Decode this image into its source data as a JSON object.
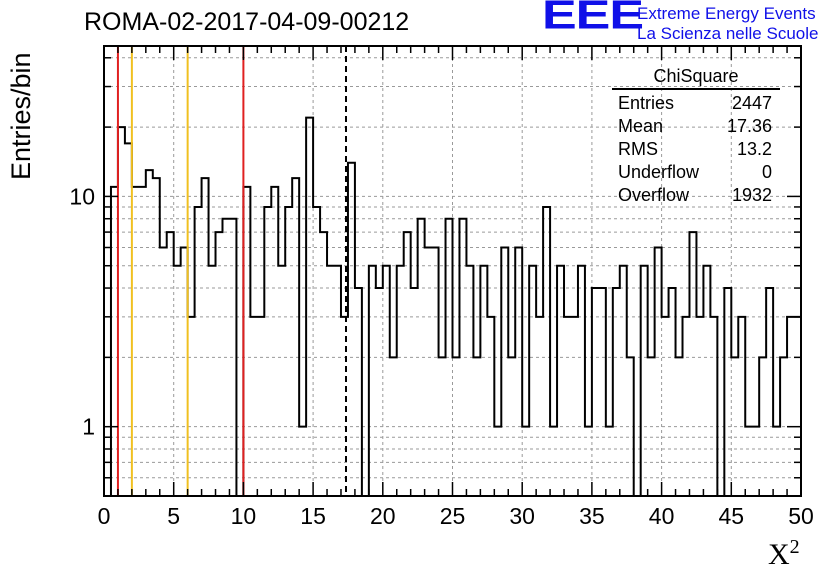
{
  "header": {
    "run_title": "ROMA-02-2017-04-09-00212",
    "logo_text": "EEE",
    "logo_line1": "Extreme Energy Events",
    "logo_line2": "La Scienza nelle Scuole"
  },
  "axes": {
    "ylabel": "Entries/bin",
    "xlabel": "X",
    "xlabel_sup": "2"
  },
  "stats_box": {
    "title": "ChiSquare",
    "rows": [
      {
        "label": "Entries",
        "value": "2447"
      },
      {
        "label": "Mean",
        "value": "17.36"
      },
      {
        "label": "RMS",
        "value": "13.2"
      },
      {
        "label": "Underflow",
        "value": "0"
      },
      {
        "label": "Overflow",
        "value": "1932"
      }
    ]
  },
  "colors": {
    "red_line": "#e02020",
    "yellow_line": "#f0c020",
    "logo_blue": "#1010e8"
  },
  "chart_data": {
    "type": "histogram",
    "x_range": [
      0,
      50
    ],
    "y_range": [
      0.5,
      45
    ],
    "y_scale": "log",
    "bin_width": 0.5,
    "xticks": [
      0,
      5,
      10,
      15,
      20,
      25,
      30,
      35,
      40,
      45,
      50
    ],
    "yticks": [
      1,
      10
    ],
    "grid": true,
    "counts": [
      0,
      11,
      20,
      17,
      11,
      11,
      13,
      12,
      6,
      7,
      5,
      6,
      3,
      9,
      12,
      5,
      7,
      8,
      8,
      0,
      11,
      3,
      3,
      9,
      11,
      5,
      9,
      12,
      1,
      22,
      9,
      7,
      5,
      5,
      3,
      14,
      4,
      0,
      5,
      4,
      5,
      2,
      5,
      7,
      4,
      8,
      6,
      6,
      2,
      8,
      2,
      8,
      5,
      2,
      5,
      3,
      1,
      6,
      2,
      6,
      1,
      5,
      3,
      9,
      1,
      5,
      3,
      3,
      5,
      1,
      4,
      4,
      1,
      4,
      5,
      2,
      0,
      5,
      2,
      6,
      3,
      4,
      2,
      3,
      7,
      3,
      5,
      3,
      0,
      4,
      2,
      3,
      1,
      1,
      2,
      4,
      1,
      2,
      3,
      3
    ],
    "vertical_lines": [
      {
        "x": 1,
        "style": "red-solid"
      },
      {
        "x": 2,
        "style": "yellow-solid"
      },
      {
        "x": 6,
        "style": "yellow-solid"
      },
      {
        "x": 10,
        "style": "red-solid"
      },
      {
        "x": 17.36,
        "style": "black-dashed"
      }
    ]
  }
}
